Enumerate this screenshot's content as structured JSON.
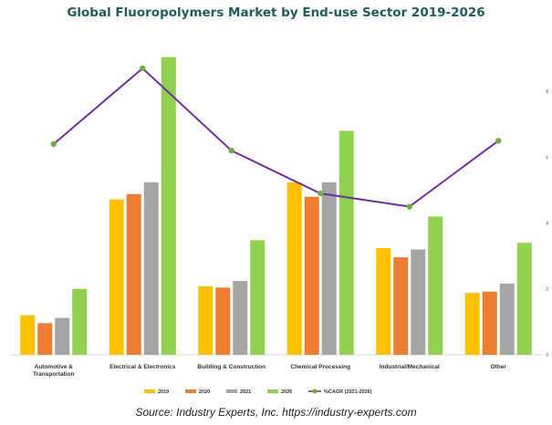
{
  "title": "Global Fluoropolymers Market by End-use Sector 2019-2026",
  "source": "Source: Industry Experts, Inc. https://industry-experts.com",
  "colors": {
    "2019": "#ffc000",
    "2020": "#ed7d31",
    "2021": "#a5a5a5",
    "2026": "#92d050",
    "cagr_line": "#7030a0",
    "cagr_marker": "#70ad47"
  },
  "chart_data": {
    "type": "bar",
    "title": "Global Fluoropolymers Market by End-use Sector 2019-2026",
    "categories": [
      [
        "Automotive &",
        "Transportation"
      ],
      [
        "Electrical & Electronics"
      ],
      [
        "Building & Construction"
      ],
      [
        "Chemical Processing"
      ],
      [
        "Industrial/Mechanical"
      ],
      [
        "Other"
      ]
    ],
    "category_names": [
      "Automotive & Transportation",
      "Electrical & Electronics",
      "Building & Construction",
      "Chemical Processing",
      "Industrial/Mechanical",
      "Other"
    ],
    "series": [
      {
        "name": "2019",
        "values": [
          0.3,
          1.18,
          0.52,
          1.31,
          0.81,
          0.47
        ]
      },
      {
        "name": "2020",
        "values": [
          0.24,
          1.22,
          0.51,
          1.2,
          0.74,
          0.48
        ]
      },
      {
        "name": "2021",
        "values": [
          0.28,
          1.31,
          0.56,
          1.31,
          0.8,
          0.54
        ]
      },
      {
        "name": "2026",
        "values": [
          0.5,
          2.26,
          0.87,
          1.7,
          1.05,
          0.85
        ]
      }
    ],
    "line_series": {
      "name": "%CAGR (2021-2026)",
      "values": [
        6.4,
        8.7,
        6.2,
        4.9,
        4.5,
        6.5
      ]
    },
    "ylim_left": [
      0,
      2.5
    ],
    "ylim_right": [
      0,
      10
    ],
    "right_ticks": [
      "0",
      "2",
      "4",
      "6",
      "8"
    ],
    "legend_position": "bottom",
    "grid": false
  }
}
